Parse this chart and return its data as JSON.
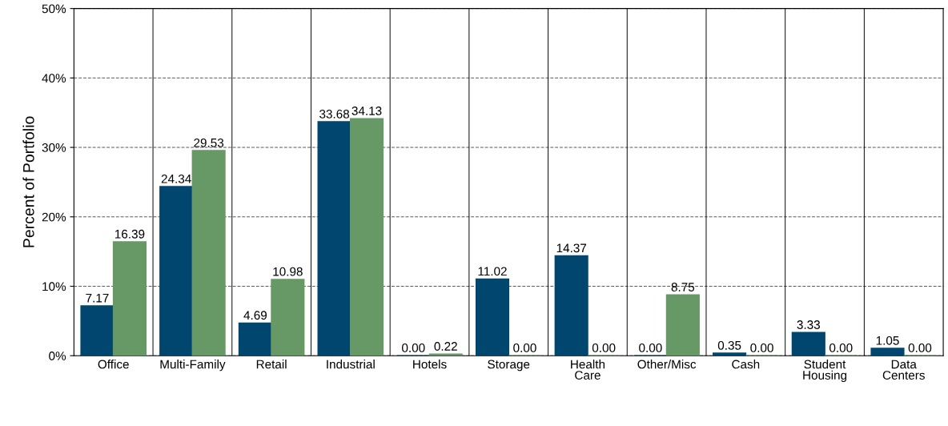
{
  "chart_data": {
    "type": "bar",
    "ylabel": "Percent of Portfolio",
    "categories": [
      "Office",
      "Multi-Family",
      "Retail",
      "Industrial",
      "Hotels",
      "Storage",
      "Health\nCare",
      "Other/Misc",
      "Cash",
      "Student\nHousing",
      "Data\nCenters"
    ],
    "series": [
      {
        "color": "#00466e",
        "values": [
          7.17,
          24.34,
          4.69,
          33.68,
          0.0,
          11.02,
          14.37,
          0.0,
          0.35,
          3.33,
          1.05
        ],
        "value_labels": [
          "7.17",
          "24.34",
          "4.69",
          "33.68",
          "0.00",
          "11.02",
          "14.37",
          "0.00",
          "0.35",
          "3.33",
          "1.05"
        ]
      },
      {
        "color": "#669966",
        "values": [
          16.39,
          29.53,
          10.98,
          34.13,
          0.22,
          0.0,
          0.0,
          8.75,
          0.0,
          0.0,
          0.0
        ],
        "value_labels": [
          "16.39",
          "29.53",
          "10.98",
          "34.13",
          "0.22",
          "0.00",
          "0.00",
          "8.75",
          "0.00",
          "0.00",
          "0.00"
        ]
      }
    ],
    "ylim": [
      0,
      50
    ],
    "yticks": [
      {
        "value": 0,
        "label": "0%"
      },
      {
        "value": 10,
        "label": "10%"
      },
      {
        "value": 20,
        "label": "20%"
      },
      {
        "value": 30,
        "label": "30%"
      },
      {
        "value": 40,
        "label": "40%"
      },
      {
        "value": 50,
        "label": "50%"
      }
    ],
    "grid": true,
    "line_style": "dashed"
  }
}
